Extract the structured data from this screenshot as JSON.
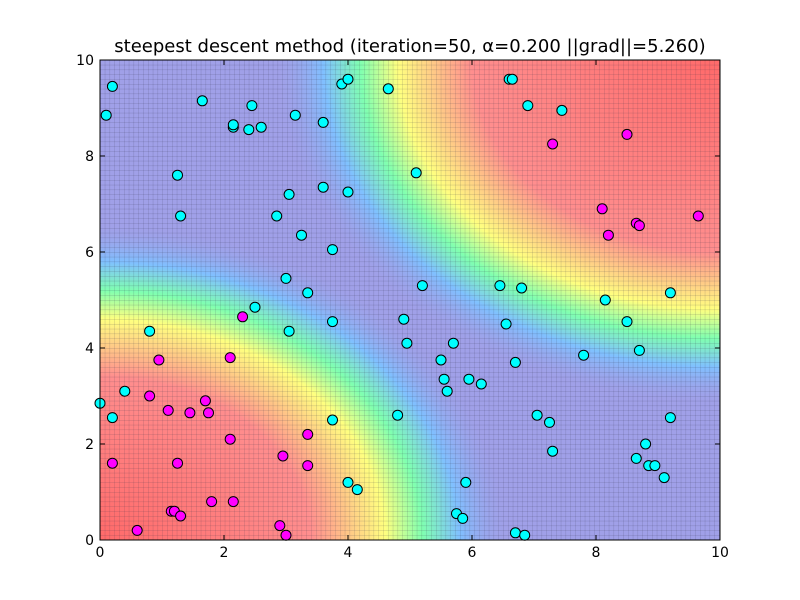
{
  "chart_data": {
    "type": "scatter",
    "title": "steepest descent method (iteration=50, α=0.200 ||grad||=5.260)",
    "xlabel": "",
    "ylabel": "",
    "xlim": [
      0,
      10
    ],
    "ylim": [
      0,
      10
    ],
    "x_ticks": [
      "0",
      "2",
      "4",
      "6",
      "8",
      "10"
    ],
    "y_ticks": [
      "0",
      "2",
      "4",
      "6",
      "8",
      "10"
    ],
    "grid": true,
    "background": "decision-surface heatmap: red regions near lower-left and upper-right, blue elsewhere",
    "colors": {
      "class_magenta": "#ff00ff",
      "class_cyan": "#00ffff",
      "high": "#ff6a6a",
      "low": "#a0a0e8"
    },
    "series": [
      {
        "color": "#ff00ff",
        "points": [
          [
            0.2,
            1.6
          ],
          [
            0.6,
            0.2
          ],
          [
            0.8,
            3.0
          ],
          [
            0.95,
            3.75
          ],
          [
            1.1,
            2.7
          ],
          [
            1.15,
            0.6
          ],
          [
            1.2,
            0.6
          ],
          [
            1.25,
            1.6
          ],
          [
            1.3,
            0.5
          ],
          [
            1.45,
            2.65
          ],
          [
            1.7,
            2.9
          ],
          [
            1.75,
            2.65
          ],
          [
            1.8,
            0.8
          ],
          [
            2.1,
            3.8
          ],
          [
            2.1,
            2.1
          ],
          [
            2.15,
            0.8
          ],
          [
            2.3,
            4.65
          ],
          [
            2.9,
            0.3
          ],
          [
            2.95,
            1.75
          ],
          [
            3.0,
            0.1
          ],
          [
            3.35,
            2.2
          ],
          [
            3.35,
            1.55
          ],
          [
            7.3,
            8.25
          ],
          [
            8.1,
            6.9
          ],
          [
            8.2,
            6.35
          ],
          [
            8.5,
            8.45
          ],
          [
            8.65,
            6.6
          ],
          [
            8.7,
            6.55
          ],
          [
            9.65,
            6.75
          ]
        ]
      },
      {
        "color": "#00ffff",
        "points": [
          [
            0.0,
            2.85
          ],
          [
            0.1,
            8.85
          ],
          [
            0.2,
            9.45
          ],
          [
            0.2,
            2.55
          ],
          [
            0.4,
            3.1
          ],
          [
            0.8,
            4.35
          ],
          [
            1.25,
            7.6
          ],
          [
            1.3,
            6.75
          ],
          [
            1.65,
            9.15
          ],
          [
            2.15,
            8.6
          ],
          [
            2.15,
            8.65
          ],
          [
            2.4,
            8.55
          ],
          [
            2.45,
            9.05
          ],
          [
            2.5,
            4.85
          ],
          [
            2.6,
            8.6
          ],
          [
            2.85,
            6.75
          ],
          [
            3.0,
            5.45
          ],
          [
            3.05,
            7.2
          ],
          [
            3.05,
            4.35
          ],
          [
            3.15,
            8.85
          ],
          [
            3.25,
            6.35
          ],
          [
            3.35,
            5.15
          ],
          [
            3.6,
            8.7
          ],
          [
            3.6,
            7.35
          ],
          [
            3.75,
            6.05
          ],
          [
            3.75,
            4.55
          ],
          [
            3.75,
            2.5
          ],
          [
            3.9,
            9.5
          ],
          [
            4.0,
            9.6
          ],
          [
            4.0,
            7.25
          ],
          [
            4.0,
            1.2
          ],
          [
            4.15,
            1.05
          ],
          [
            4.65,
            9.4
          ],
          [
            4.8,
            2.6
          ],
          [
            4.9,
            4.6
          ],
          [
            4.95,
            4.1
          ],
          [
            5.1,
            7.65
          ],
          [
            5.2,
            5.3
          ],
          [
            5.5,
            3.75
          ],
          [
            5.55,
            3.35
          ],
          [
            5.6,
            3.1
          ],
          [
            5.7,
            4.1
          ],
          [
            5.75,
            0.55
          ],
          [
            5.85,
            0.45
          ],
          [
            5.9,
            1.2
          ],
          [
            5.95,
            3.35
          ],
          [
            6.15,
            3.25
          ],
          [
            6.45,
            5.3
          ],
          [
            6.55,
            4.5
          ],
          [
            6.6,
            9.6
          ],
          [
            6.65,
            9.6
          ],
          [
            6.7,
            3.7
          ],
          [
            6.7,
            0.15
          ],
          [
            6.8,
            5.25
          ],
          [
            6.85,
            0.1
          ],
          [
            6.9,
            9.05
          ],
          [
            7.05,
            2.6
          ],
          [
            7.25,
            2.45
          ],
          [
            7.3,
            1.85
          ],
          [
            7.45,
            8.95
          ],
          [
            7.8,
            3.85
          ],
          [
            8.15,
            5.0
          ],
          [
            8.5,
            4.55
          ],
          [
            8.65,
            1.7
          ],
          [
            8.7,
            3.95
          ],
          [
            8.8,
            2.0
          ],
          [
            8.85,
            1.55
          ],
          [
            8.95,
            1.55
          ],
          [
            9.1,
            1.3
          ],
          [
            9.2,
            5.15
          ],
          [
            9.2,
            2.55
          ]
        ]
      }
    ]
  }
}
